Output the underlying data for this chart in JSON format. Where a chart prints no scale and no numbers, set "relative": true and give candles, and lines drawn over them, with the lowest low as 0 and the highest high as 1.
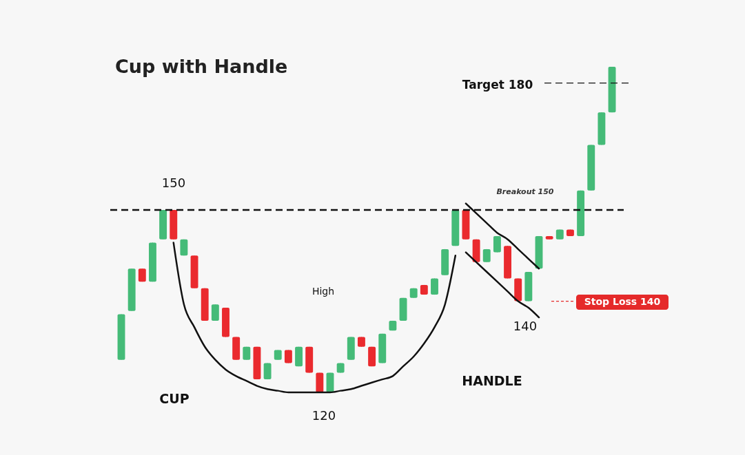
{
  "chart_data": {
    "type": "candlestick",
    "title": "Cup with Handle",
    "relative": true,
    "categories": [
      null,
      null,
      null,
      null,
      null,
      null,
      null,
      null,
      null,
      null,
      null,
      null,
      null,
      null,
      null,
      null,
      null,
      null,
      null,
      null,
      null,
      null,
      null,
      null,
      null,
      null,
      null,
      null,
      null,
      null,
      null,
      null,
      null,
      null,
      null,
      null,
      null,
      null,
      null,
      null,
      null,
      null,
      null,
      null,
      null,
      null,
      null,
      null
    ],
    "ohlc": [
      [
        0.1,
        0.24,
        0.1,
        0.24
      ],
      [
        0.25,
        0.38,
        0.25,
        0.38
      ],
      [
        0.38,
        0.38,
        0.34,
        0.34
      ],
      [
        0.34,
        0.46,
        0.34,
        0.46
      ],
      [
        0.47,
        0.56,
        0.47,
        0.56
      ],
      [
        0.56,
        0.56,
        0.47,
        0.47
      ],
      [
        0.42,
        0.47,
        0.42,
        0.47
      ],
      [
        0.42,
        0.42,
        0.32,
        0.32
      ],
      [
        0.32,
        0.32,
        0.22,
        0.22
      ],
      [
        0.22,
        0.27,
        0.22,
        0.27
      ],
      [
        0.26,
        0.26,
        0.17,
        0.17
      ],
      [
        0.17,
        0.17,
        0.1,
        0.1
      ],
      [
        0.1,
        0.14,
        0.1,
        0.14
      ],
      [
        0.14,
        0.14,
        0.04,
        0.04
      ],
      [
        0.04,
        0.09,
        0.04,
        0.09
      ],
      [
        0.1,
        0.13,
        0.1,
        0.13
      ],
      [
        0.13,
        0.13,
        0.09,
        0.09
      ],
      [
        0.08,
        0.14,
        0.08,
        0.14
      ],
      [
        0.14,
        0.14,
        0.06,
        0.06
      ],
      [
        0.06,
        0.06,
        0,
        0
      ],
      [
        0,
        0.06,
        0,
        0.06
      ],
      [
        0.06,
        0.09,
        0.06,
        0.09
      ],
      [
        0.1,
        0.17,
        0.1,
        0.17
      ],
      [
        0.17,
        0.17,
        0.14,
        0.14
      ],
      [
        0.14,
        0.14,
        0.08,
        0.08
      ],
      [
        0.09,
        0.18,
        0.09,
        0.18
      ],
      [
        0.19,
        0.22,
        0.19,
        0.22
      ],
      [
        0.22,
        0.29,
        0.22,
        0.29
      ],
      [
        0.29,
        0.32,
        0.29,
        0.32
      ],
      [
        0.33,
        0.33,
        0.3,
        0.3
      ],
      [
        0.3,
        0.35,
        0.3,
        0.35
      ],
      [
        0.36,
        0.44,
        0.36,
        0.44
      ],
      [
        0.45,
        0.56,
        0.45,
        0.56
      ],
      [
        0.56,
        0.56,
        0.47,
        0.47
      ],
      [
        0.47,
        0.47,
        0.4,
        0.4
      ],
      [
        0.4,
        0.44,
        0.4,
        0.44
      ],
      [
        0.43,
        0.48,
        0.43,
        0.48
      ],
      [
        0.45,
        0.45,
        0.35,
        0.35
      ],
      [
        0.35,
        0.35,
        0.28,
        0.28
      ],
      [
        0.28,
        0.37,
        0.28,
        0.37
      ],
      [
        0.38,
        0.48,
        0.38,
        0.48
      ],
      [
        0.48,
        0.48,
        0.47,
        0.47
      ],
      [
        0.47,
        0.5,
        0.47,
        0.5
      ],
      [
        0.5,
        0.5,
        0.48,
        0.48
      ],
      [
        0.48,
        0.62,
        0.48,
        0.62
      ],
      [
        0.62,
        0.76,
        0.62,
        0.76
      ],
      [
        0.76,
        0.86,
        0.76,
        0.86
      ],
      [
        0.86,
        1.0,
        0.86,
        1.0
      ]
    ],
    "colors": [
      "#45bb78",
      "#45bb78",
      "#ea2a2e",
      "#45bb78",
      "#45bb78",
      "#ea2a2e",
      "#45bb78",
      "#ea2a2e",
      "#ea2a2e",
      "#45bb78",
      "#ea2a2e",
      "#ea2a2e",
      "#45bb78",
      "#ea2a2e",
      "#45bb78",
      "#45bb78",
      "#ea2a2e",
      "#45bb78",
      "#ea2a2e",
      "#ea2a2e",
      "#45bb78",
      "#45bb78",
      "#45bb78",
      "#ea2a2e",
      "#ea2a2e",
      "#45bb78",
      "#45bb78",
      "#45bb78",
      "#45bb78",
      "#ea2a2e",
      "#45bb78",
      "#45bb78",
      "#45bb78",
      "#ea2a2e",
      "#ea2a2e",
      "#45bb78",
      "#45bb78",
      "#ea2a2e",
      "#ea2a2e",
      "#45bb78",
      "#45bb78",
      "#ea2a2e",
      "#45bb78",
      "#ea2a2e",
      "#45bb78",
      "#45bb78",
      "#45bb78",
      "#45bb78"
    ],
    "series": [
      {
        "type": "line",
        "color": "#111111",
        "values": [
          null,
          null,
          null,
          null,
          null,
          0.46,
          0.27,
          0.2,
          0.14,
          0.1,
          0.07,
          0.05,
          0.035,
          0.02,
          0.01,
          0.005,
          0,
          0,
          0,
          0,
          0,
          0.005,
          0.01,
          0.02,
          0.03,
          0.04,
          0.05,
          0.08,
          0.11,
          0.15,
          0.2,
          0.27,
          0.42,
          null,
          null,
          null,
          null,
          null,
          null,
          null,
          null,
          null,
          null,
          null,
          null,
          null,
          null,
          null
        ]
      },
      {
        "type": "line",
        "color": "#111111",
        "values": [
          null,
          null,
          null,
          null,
          null,
          null,
          null,
          null,
          null,
          null,
          null,
          null,
          null,
          null,
          null,
          null,
          null,
          null,
          null,
          null,
          null,
          null,
          null,
          null,
          null,
          null,
          null,
          null,
          null,
          null,
          null,
          null,
          null,
          0.58,
          0.55,
          0.52,
          0.49,
          0.47,
          0.44,
          0.41,
          0.38,
          null,
          null,
          null,
          null,
          null,
          null,
          null
        ]
      },
      {
        "type": "line",
        "color": "#111111",
        "values": [
          null,
          null,
          null,
          null,
          null,
          null,
          null,
          null,
          null,
          null,
          null,
          null,
          null,
          null,
          null,
          null,
          null,
          null,
          null,
          null,
          null,
          null,
          null,
          null,
          null,
          null,
          null,
          null,
          null,
          null,
          null,
          null,
          null,
          0.43,
          0.4,
          0.37,
          0.34,
          0.31,
          0.28,
          0.26,
          0.23,
          null,
          null,
          null,
          null,
          null,
          null,
          null
        ]
      }
    ],
    "ref_lines": [
      {
        "axis": "y",
        "value": 0.56,
        "label": "Breakout 150",
        "color": "#111111",
        "line_style": "dashed"
      },
      {
        "axis": "y",
        "value": 0.95,
        "label": "Target 180",
        "color": "#111111",
        "line_style": "dashed"
      },
      {
        "axis": "y",
        "value": 0.28,
        "label": "Stop Loss 140",
        "color": "#e52a2a",
        "line_style": "dotted"
      }
    ],
    "annotations": [
      "150",
      "120",
      "140",
      "High",
      "CUP",
      "HANDLE"
    ]
  }
}
